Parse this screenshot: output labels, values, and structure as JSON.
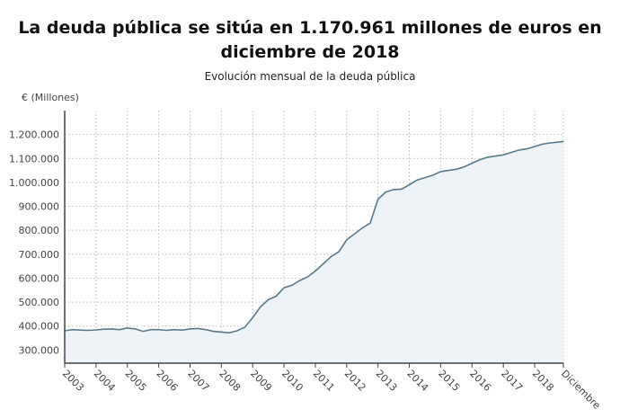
{
  "chart_data": {
    "type": "area",
    "title": "La deuda pública se sitúa en 1.170.961 millones de euros en diciembre de 2018",
    "subtitle": "Evolución mensual de la deuda pública",
    "ylabel": "€ (Millones)",
    "xlabel": "",
    "ylim": [
      245000,
      1300000
    ],
    "yticks": [
      300000,
      400000,
      500000,
      600000,
      700000,
      800000,
      900000,
      1000000,
      1100000,
      1200000
    ],
    "ytick_labels": [
      "300.000",
      "400.000",
      "500.000",
      "600.000",
      "700.000",
      "800.000",
      "900.000",
      "1.000.000",
      "1.100.000",
      "1.200.000"
    ],
    "xtick_labels": [
      "2003",
      "2004",
      "2005",
      "2006",
      "2007",
      "2008",
      "2009",
      "2010",
      "2011",
      "2012",
      "2013",
      "2014",
      "2015",
      "2016",
      "2017",
      "2018",
      "Diciembre"
    ],
    "grid": true,
    "colors": {
      "line": "#5a7a8c",
      "fill": "#eef3f8",
      "grid": "#cccccc"
    },
    "series": [
      {
        "x": [
          "2003-01",
          "2003-04",
          "2003-07",
          "2003-10",
          "2004-01",
          "2004-04",
          "2004-07",
          "2004-10",
          "2005-01",
          "2005-04",
          "2005-07",
          "2005-10",
          "2006-01",
          "2006-04",
          "2006-07",
          "2006-10",
          "2007-01",
          "2007-04",
          "2007-07",
          "2007-10",
          "2008-01",
          "2008-04",
          "2008-07",
          "2008-10",
          "2009-01",
          "2009-04",
          "2009-07",
          "2009-10",
          "2010-01",
          "2010-04",
          "2010-07",
          "2010-10",
          "2011-01",
          "2011-04",
          "2011-07",
          "2011-10",
          "2012-01",
          "2012-04",
          "2012-07",
          "2012-10",
          "2013-01",
          "2013-04",
          "2013-07",
          "2013-10",
          "2014-01",
          "2014-04",
          "2014-07",
          "2014-10",
          "2015-01",
          "2015-04",
          "2015-07",
          "2015-10",
          "2016-01",
          "2016-04",
          "2016-07",
          "2016-10",
          "2017-01",
          "2017-04",
          "2017-07",
          "2017-10",
          "2018-01",
          "2018-04",
          "2018-07",
          "2018-12"
        ],
        "values": [
          380000,
          385000,
          383000,
          382000,
          384000,
          387000,
          388000,
          385000,
          392000,
          388000,
          378000,
          385000,
          385000,
          382000,
          385000,
          383000,
          388000,
          390000,
          385000,
          378000,
          375000,
          372000,
          380000,
          395000,
          435000,
          480000,
          510000,
          525000,
          560000,
          570000,
          590000,
          605000,
          630000,
          660000,
          690000,
          710000,
          760000,
          785000,
          810000,
          830000,
          930000,
          960000,
          970000,
          972000,
          990000,
          1010000,
          1020000,
          1030000,
          1045000,
          1050000,
          1055000,
          1065000,
          1080000,
          1095000,
          1105000,
          1110000,
          1115000,
          1125000,
          1135000,
          1140000,
          1150000,
          1160000,
          1165000,
          1170961
        ]
      }
    ]
  }
}
